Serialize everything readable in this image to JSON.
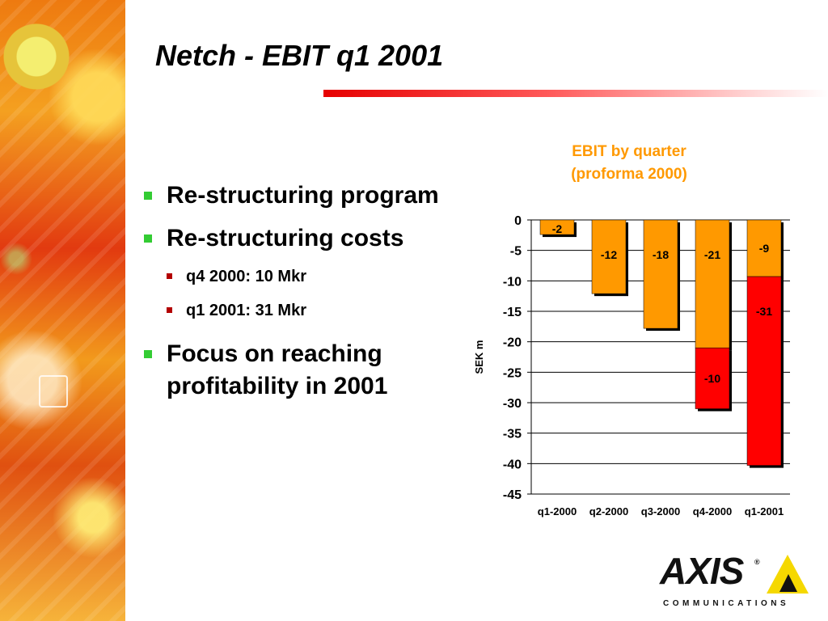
{
  "slide": {
    "title": "Netch - EBIT q1 2001",
    "bullets": [
      {
        "text": "Re-structuring program"
      },
      {
        "text": "Re-structuring costs",
        "sub": [
          "q4 2000: 10 Mkr",
          "q1 2001: 31 Mkr"
        ]
      },
      {
        "text": "Focus on reaching profitability in 2001"
      }
    ],
    "logo": {
      "name": "AXIS",
      "registered": "®",
      "tagline": "COMMUNICATIONS"
    }
  },
  "colors": {
    "accent_green": "#33cc33",
    "sub_bullet": "#b30000",
    "chart_title": "#ff9900",
    "orange": "#ff9900",
    "red": "#ff0000",
    "title_rule": "#e60000"
  },
  "chart_data": {
    "type": "bar",
    "title": [
      "EBIT by quarter",
      "(proforma 2000)"
    ],
    "ylabel": "SEK m",
    "xlabel": "",
    "categories": [
      "q1-2000",
      "q2-2000",
      "q3-2000",
      "q4-2000",
      "q1-2001"
    ],
    "stacked": true,
    "series": [
      {
        "color": "#ff9900",
        "values": [
          -2.4,
          -12.1,
          -17.8,
          -21,
          -9.3
        ],
        "labels": [
          "-2",
          "-12",
          "-18",
          "-21",
          "-9"
        ]
      },
      {
        "color": "#ff0000",
        "values": [
          0,
          0,
          0,
          -10,
          -31
        ],
        "labels": [
          "",
          "",
          "",
          "-10",
          "-31"
        ]
      }
    ],
    "yticks": [
      0,
      -5,
      -10,
      -15,
      -20,
      -25,
      -30,
      -35,
      -40,
      -45
    ],
    "ylim": [
      -45,
      0
    ],
    "grid": true,
    "legend": "none"
  }
}
